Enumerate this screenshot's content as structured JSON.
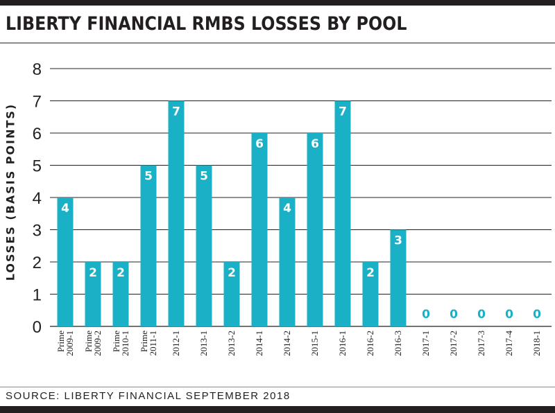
{
  "title": "LIBERTY FINANCIAL RMBS LOSSES BY POOL",
  "source": "SOURCE: LIBERTY FINANCIAL SEPTEMBER 2018",
  "colors": {
    "bar": "#1ab0c5",
    "grid": "#231f20",
    "text": "#231f20",
    "zero_label": "#1ab0c5",
    "bar_label": "#ffffff"
  },
  "chart_data": {
    "type": "bar",
    "title": "LIBERTY FINANCIAL RMBS LOSSES BY POOL",
    "xlabel": "",
    "ylabel": "LOSSES (BASIS POINTS)",
    "ylim": [
      0,
      8
    ],
    "yticks": [
      0,
      1,
      2,
      3,
      4,
      5,
      6,
      7,
      8
    ],
    "grid": true,
    "categories": [
      [
        "Prime",
        "2009-1"
      ],
      [
        "Prime",
        "2009-2"
      ],
      [
        "Prime",
        "2010-1"
      ],
      [
        "Prime",
        "2011-1"
      ],
      [
        "2012-1"
      ],
      [
        "2013-1"
      ],
      [
        "2013-2"
      ],
      [
        "2014-1"
      ],
      [
        "2014-2"
      ],
      [
        "2015-1"
      ],
      [
        "2016-1"
      ],
      [
        "2016-2"
      ],
      [
        "2016-3"
      ],
      [
        "2017-1"
      ],
      [
        "2017-2"
      ],
      [
        "2017-3"
      ],
      [
        "2017-4"
      ],
      [
        "2018-1"
      ]
    ],
    "values": [
      4,
      2,
      2,
      5,
      7,
      5,
      2,
      6,
      4,
      6,
      7,
      2,
      3,
      0,
      0,
      0,
      0,
      0
    ]
  }
}
